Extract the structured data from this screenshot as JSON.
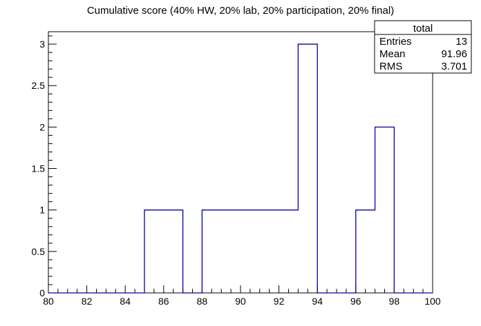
{
  "chart_data": {
    "type": "bar",
    "title": "Cumulative score (40% HW, 20% lab, 20% participation, 20% final)",
    "xlabel": "",
    "ylabel": "",
    "xlim": [
      80,
      100
    ],
    "ylim": [
      0,
      3.15
    ],
    "grid": false,
    "bins": [
      {
        "low": 85,
        "high": 86,
        "count": 1
      },
      {
        "low": 86,
        "high": 87,
        "count": 1
      },
      {
        "low": 88,
        "high": 89,
        "count": 1
      },
      {
        "low": 89,
        "high": 90,
        "count": 1
      },
      {
        "low": 90,
        "high": 91,
        "count": 1
      },
      {
        "low": 91,
        "high": 92,
        "count": 1
      },
      {
        "low": 92,
        "high": 93,
        "count": 1
      },
      {
        "low": 93,
        "high": 94,
        "count": 3
      },
      {
        "low": 96,
        "high": 97,
        "count": 1
      },
      {
        "low": 97,
        "high": 98,
        "count": 2
      }
    ],
    "xticks": [
      80,
      82,
      84,
      86,
      88,
      90,
      92,
      94,
      96,
      98,
      100
    ],
    "xtick_labels": [
      "80",
      "82",
      "84",
      "86",
      "88",
      "90",
      "92",
      "94",
      "96",
      "98",
      "100"
    ],
    "yticks": [
      0,
      0.5,
      1,
      1.5,
      2,
      2.5,
      3
    ],
    "ytick_labels": [
      "0",
      "0.5",
      "1",
      "1.5",
      "2",
      "2.5",
      "3"
    ],
    "stats_box": {
      "title": "total",
      "rows": [
        {
          "label": "Entries",
          "value": "13"
        },
        {
          "label": "Mean",
          "value": "91.96"
        },
        {
          "label": "RMS",
          "value": "3.701"
        }
      ],
      "placement": "top-right"
    },
    "line_color": "#000099"
  }
}
